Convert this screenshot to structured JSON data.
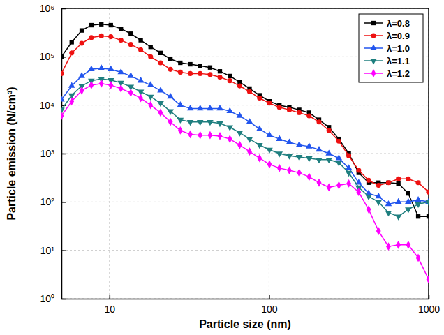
{
  "chart_data": {
    "type": "line",
    "x_label": "Particle size (nm)",
    "y_label": "Particle emission (N/cm³)",
    "log": true,
    "grid": true,
    "legend": "top-right",
    "xlim": [
      5,
      1000
    ],
    "ylim": [
      1,
      1000000
    ],
    "xticks": [
      10,
      100,
      1000
    ],
    "yticks": [
      {
        "value": 1,
        "label": "10⁰"
      },
      {
        "value": 10,
        "label": "10¹"
      },
      {
        "value": 100,
        "label": "10²"
      },
      {
        "value": 1000,
        "label": "10³"
      },
      {
        "value": 10000,
        "label": "10⁴"
      },
      {
        "value": 100000,
        "label": "10⁵"
      },
      {
        "value": 1000000,
        "label": "10⁶"
      }
    ],
    "x": [
      5.0,
      5.8,
      6.7,
      7.7,
      8.9,
      10.2,
      11.8,
      13.6,
      15.7,
      18.1,
      20.9,
      24.1,
      27.8,
      32.1,
      37.0,
      42.7,
      49.2,
      56.8,
      65.5,
      75.5,
      87.2,
      100.6,
      116.1,
      134.0,
      154.5,
      178.3,
      205.7,
      237.3,
      273.8,
      315.9,
      364.5,
      420.7,
      485.4,
      560.0,
      646.2,
      745.6,
      860.3,
      1000
    ],
    "series": [
      {
        "name": "λ=0.8",
        "color": "#000000",
        "marker": "square",
        "values": [
          100000,
          200000,
          350000,
          450000,
          470000,
          450000,
          380000,
          300000,
          220000,
          160000,
          120000,
          90000,
          75000,
          70000,
          65000,
          60000,
          50000,
          40000,
          30000,
          22000,
          16000,
          12000,
          10000,
          9000,
          8000,
          7000,
          5000,
          3500,
          2000,
          1000,
          400,
          250,
          250,
          250,
          240,
          150,
          50,
          50
        ]
      },
      {
        "name": "λ=0.9",
        "color": "#ee1111",
        "marker": "circle",
        "values": [
          45000,
          120000,
          190000,
          250000,
          270000,
          260000,
          220000,
          180000,
          140000,
          100000,
          75000,
          55000,
          48000,
          45000,
          45000,
          43000,
          38000,
          32000,
          25000,
          19000,
          14000,
          11000,
          9000,
          8000,
          7000,
          6000,
          4500,
          3000,
          1800,
          900,
          450,
          280,
          220,
          250,
          300,
          300,
          250,
          160
        ]
      },
      {
        "name": "λ=1.0",
        "color": "#2255ee",
        "marker": "triangle-up",
        "values": [
          13000,
          25000,
          40000,
          55000,
          58000,
          55000,
          48000,
          40000,
          32000,
          26000,
          20000,
          15000,
          10000,
          8500,
          8500,
          8500,
          8500,
          7500,
          6000,
          4500,
          3200,
          2400,
          2000,
          1700,
          1500,
          1400,
          1200,
          1000,
          800,
          500,
          250,
          150,
          130,
          90,
          100,
          100,
          110,
          100
        ]
      },
      {
        "name": "λ=1.1",
        "color": "#1f7f7f",
        "marker": "triangle-down",
        "values": [
          8000,
          16000,
          25000,
          32000,
          35000,
          33000,
          29000,
          24000,
          19000,
          15000,
          11000,
          7500,
          5000,
          4500,
          4500,
          4500,
          4200,
          3500,
          2700,
          2000,
          1500,
          1200,
          1000,
          900,
          850,
          800,
          750,
          750,
          650,
          400,
          200,
          130,
          100,
          60,
          50,
          70,
          90,
          100
        ]
      },
      {
        "name": "λ=1.2",
        "color": "#ff00ff",
        "marker": "diamond",
        "values": [
          6000,
          12000,
          20000,
          26000,
          28000,
          26000,
          22000,
          18000,
          14000,
          10000,
          7000,
          4500,
          3000,
          2500,
          2400,
          2400,
          2300,
          2000,
          1500,
          1100,
          800,
          600,
          500,
          450,
          400,
          330,
          250,
          200,
          220,
          240,
          160,
          70,
          25,
          12,
          13,
          13,
          7,
          2.5
        ]
      }
    ]
  }
}
